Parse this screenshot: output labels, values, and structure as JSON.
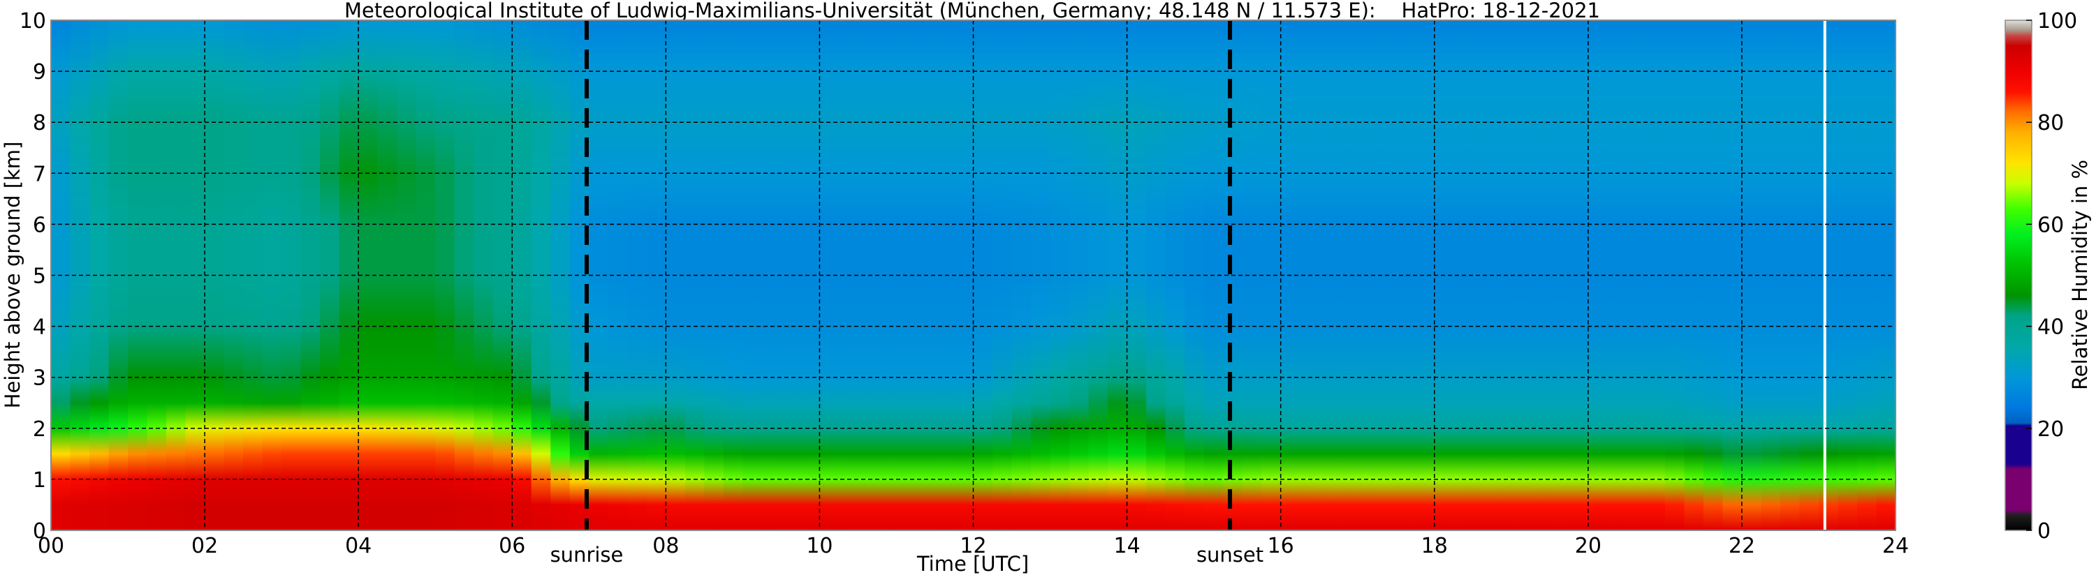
{
  "chart_data": {
    "type": "heatmap",
    "title": "Meteorological Institute of Ludwig-Maximilians-Universität (München, Germany; 48.148 N / 11.573 E):    HatPro: 18-12-2021",
    "xlabel": "Time [UTC]",
    "ylabel": "Height above ground [km]",
    "colorbar_label": "Relative Humidity in %",
    "xlim": [
      0,
      24
    ],
    "ylim": [
      0,
      10
    ],
    "clim": [
      0,
      100
    ],
    "grid": true,
    "x_ticks": [
      0,
      2,
      4,
      6,
      8,
      10,
      12,
      14,
      16,
      18,
      20,
      22,
      24
    ],
    "x_tick_labels": [
      "00",
      "02",
      "04",
      "06",
      "08",
      "10",
      "12",
      "14",
      "16",
      "18",
      "20",
      "22",
      "24"
    ],
    "y_ticks": [
      0,
      1,
      2,
      3,
      4,
      5,
      6,
      7,
      8,
      9,
      10
    ],
    "y_tick_labels": [
      "0",
      "1",
      "2",
      "3",
      "4",
      "5",
      "6",
      "7",
      "8",
      "9",
      "10"
    ],
    "colorbar_ticks": [
      0,
      20,
      40,
      60,
      80,
      100
    ],
    "colorbar_tick_labels": [
      "0",
      "20",
      "40",
      "60",
      "80",
      "100"
    ],
    "annotations": [
      {
        "label": "sunrise",
        "time": 6.97
      },
      {
        "label": "sunset",
        "time": 15.34
      }
    ],
    "data_gap_time": 23.08,
    "heights_km": [
      0,
      0.5,
      1,
      1.5,
      2,
      2.5,
      3,
      4,
      5,
      6,
      7,
      8,
      9,
      10
    ],
    "times_h": [
      0,
      1,
      2,
      3,
      4,
      5,
      6,
      7,
      8,
      9,
      10,
      11,
      12,
      13,
      14,
      15,
      16,
      17,
      18,
      19,
      20,
      21,
      22,
      23,
      24
    ],
    "rh_profiles": [
      [
        92,
        92,
        86,
        72,
        52,
        42,
        36,
        32,
        30,
        30,
        30,
        32,
        30,
        26
      ],
      [
        93,
        93,
        90,
        80,
        60,
        50,
        46,
        42,
        40,
        40,
        42,
        42,
        36,
        30
      ],
      [
        94,
        94,
        92,
        82,
        70,
        50,
        46,
        42,
        40,
        40,
        42,
        42,
        36,
        30
      ],
      [
        94,
        94,
        92,
        84,
        72,
        48,
        44,
        40,
        38,
        38,
        40,
        40,
        34,
        28
      ],
      [
        94,
        94,
        92,
        84,
        72,
        52,
        48,
        46,
        44,
        44,
        46,
        44,
        38,
        30
      ],
      [
        94,
        94,
        92,
        84,
        70,
        52,
        48,
        46,
        44,
        44,
        44,
        42,
        36,
        30
      ],
      [
        93,
        93,
        90,
        80,
        64,
        50,
        46,
        42,
        40,
        40,
        40,
        40,
        34,
        28
      ],
      [
        92,
        90,
        70,
        50,
        42,
        36,
        32,
        30,
        28,
        28,
        30,
        32,
        30,
        26
      ],
      [
        92,
        88,
        68,
        52,
        44,
        36,
        32,
        28,
        27,
        27,
        30,
        32,
        30,
        26
      ],
      [
        92,
        88,
        64,
        48,
        40,
        34,
        30,
        28,
        27,
        27,
        30,
        32,
        30,
        26
      ],
      [
        92,
        88,
        64,
        48,
        40,
        34,
        30,
        28,
        27,
        27,
        30,
        32,
        30,
        26
      ],
      [
        92,
        88,
        64,
        48,
        40,
        34,
        30,
        28,
        27,
        27,
        30,
        32,
        30,
        26
      ],
      [
        92,
        88,
        64,
        48,
        40,
        34,
        30,
        28,
        27,
        27,
        30,
        32,
        30,
        26
      ],
      [
        92,
        88,
        66,
        52,
        46,
        40,
        36,
        30,
        28,
        28,
        30,
        32,
        30,
        26
      ],
      [
        92,
        88,
        68,
        56,
        50,
        46,
        42,
        34,
        30,
        30,
        32,
        34,
        30,
        26
      ],
      [
        92,
        86,
        64,
        48,
        40,
        34,
        32,
        28,
        27,
        27,
        30,
        32,
        30,
        26
      ],
      [
        92,
        86,
        66,
        48,
        38,
        34,
        32,
        28,
        27,
        27,
        30,
        31,
        30,
        26
      ],
      [
        92,
        86,
        66,
        48,
        38,
        34,
        32,
        28,
        27,
        27,
        30,
        31,
        30,
        26
      ],
      [
        92,
        86,
        66,
        48,
        38,
        34,
        32,
        28,
        27,
        27,
        30,
        31,
        30,
        26
      ],
      [
        92,
        86,
        66,
        48,
        38,
        34,
        32,
        28,
        27,
        27,
        30,
        31,
        30,
        26
      ],
      [
        92,
        86,
        66,
        48,
        38,
        34,
        32,
        28,
        27,
        27,
        30,
        31,
        30,
        26
      ],
      [
        92,
        86,
        66,
        48,
        38,
        34,
        32,
        28,
        27,
        27,
        30,
        31,
        30,
        26
      ],
      [
        92,
        82,
        60,
        44,
        36,
        32,
        30,
        28,
        27,
        27,
        30,
        31,
        30,
        26
      ],
      [
        92,
        84,
        62,
        46,
        36,
        32,
        30,
        28,
        27,
        27,
        30,
        31,
        30,
        26
      ],
      [
        92,
        86,
        64,
        48,
        38,
        34,
        32,
        28,
        27,
        27,
        30,
        31,
        30,
        26
      ]
    ],
    "colormap": [
      [
        0,
        "#000000"
      ],
      [
        3,
        "#202020"
      ],
      [
        4,
        "#7a006f"
      ],
      [
        12,
        "#7a006f"
      ],
      [
        13,
        "#1a008f"
      ],
      [
        20.5,
        "#1a008f"
      ],
      [
        21,
        "#0060c0"
      ],
      [
        24,
        "#0078e0"
      ],
      [
        30,
        "#0098d8"
      ],
      [
        36,
        "#00a8a8"
      ],
      [
        42,
        "#00a488"
      ],
      [
        46,
        "#009400"
      ],
      [
        52,
        "#00c000"
      ],
      [
        58,
        "#00f020"
      ],
      [
        63,
        "#40ff00"
      ],
      [
        68,
        "#c8ff00"
      ],
      [
        72,
        "#ffe400"
      ],
      [
        78,
        "#ffb000"
      ],
      [
        82,
        "#ff7000"
      ],
      [
        86,
        "#ff1000"
      ],
      [
        90,
        "#ee0000"
      ],
      [
        95,
        "#cc0000"
      ],
      [
        97,
        "#c84848"
      ],
      [
        98,
        "#a89888"
      ],
      [
        100,
        "#e0e0e0"
      ]
    ]
  }
}
